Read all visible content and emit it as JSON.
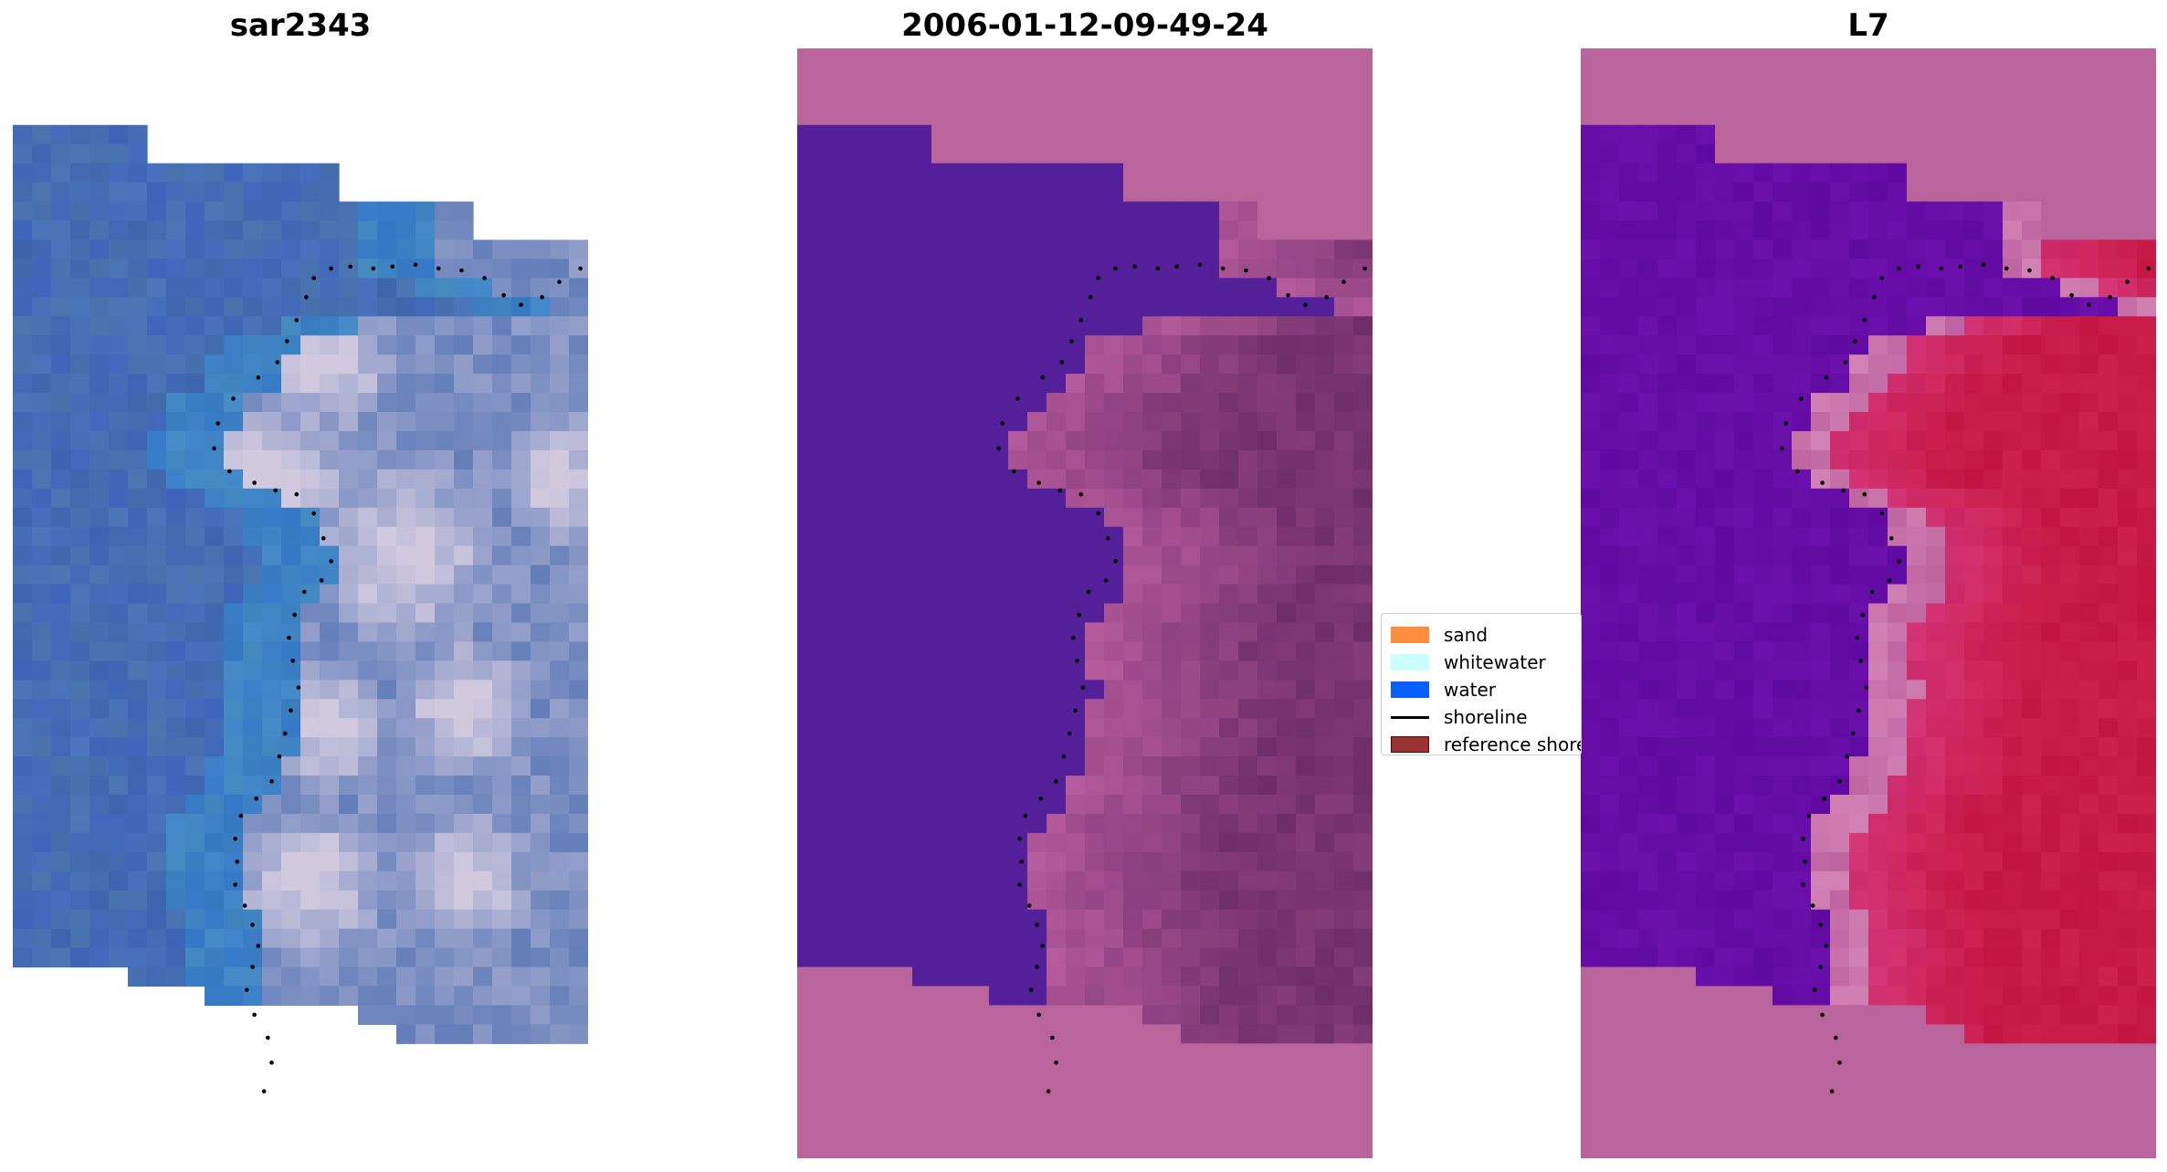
{
  "figure": {
    "panels": [
      {
        "title": "sar2343",
        "kind": "rgb"
      },
      {
        "title": "2006-01-12-09-49-24",
        "kind": "classified"
      },
      {
        "title": "L7",
        "kind": "index"
      }
    ],
    "legend": {
      "placement": "center-right of middle panel",
      "items": [
        {
          "label": "sand",
          "type": "patch",
          "color": "#FF8C3F"
        },
        {
          "label": "whitewater",
          "type": "patch",
          "color": "#C9FFFF"
        },
        {
          "label": "water",
          "type": "patch",
          "color": "#0A5FFF"
        },
        {
          "label": "shoreline",
          "type": "line",
          "color": "#000000"
        },
        {
          "label": "reference shoreline",
          "type": "patch",
          "color": "#9B3232"
        }
      ]
    },
    "colors": {
      "nodata_pink": "#B9649A",
      "water_purple": "#54209A",
      "sar_blue": "#3E65AF",
      "index_red": "#C3144A"
    }
  },
  "chart_data": {
    "type": "heatmap",
    "grid": {
      "cols": 30,
      "rows": 58
    },
    "axes_visible": false,
    "shoreline_style": "black dotted",
    "shoreline_points": [
      [
        29.6,
        11.5
      ],
      [
        28.5,
        12.2
      ],
      [
        27.6,
        13.0
      ],
      [
        26.5,
        13.4
      ],
      [
        25.6,
        12.9
      ],
      [
        24.6,
        12.0
      ],
      [
        23.4,
        11.6
      ],
      [
        22.2,
        11.5
      ],
      [
        21.0,
        11.3
      ],
      [
        19.8,
        11.4
      ],
      [
        18.8,
        11.5
      ],
      [
        17.6,
        11.4
      ],
      [
        16.6,
        11.5
      ],
      [
        15.7,
        12.0
      ],
      [
        15.3,
        13.0
      ],
      [
        14.8,
        14.2
      ],
      [
        14.3,
        15.3
      ],
      [
        13.8,
        16.4
      ],
      [
        12.8,
        17.2
      ],
      [
        11.5,
        18.3
      ],
      [
        10.7,
        19.6
      ],
      [
        10.5,
        20.9
      ],
      [
        11.3,
        22.1
      ],
      [
        12.6,
        22.7
      ],
      [
        13.7,
        23.1
      ],
      [
        14.8,
        23.3
      ],
      [
        15.7,
        24.3
      ],
      [
        16.2,
        25.6
      ],
      [
        16.6,
        26.8
      ],
      [
        16.1,
        27.8
      ],
      [
        15.2,
        28.4
      ],
      [
        14.7,
        29.6
      ],
      [
        14.4,
        30.8
      ],
      [
        14.6,
        32.0
      ],
      [
        14.9,
        33.4
      ],
      [
        14.5,
        34.6
      ],
      [
        14.2,
        35.8
      ],
      [
        13.9,
        37.0
      ],
      [
        13.5,
        38.3
      ],
      [
        12.7,
        39.2
      ],
      [
        11.9,
        40.1
      ],
      [
        11.6,
        41.3
      ],
      [
        11.7,
        42.5
      ],
      [
        11.6,
        43.7
      ],
      [
        12.1,
        44.8
      ],
      [
        12.5,
        45.8
      ],
      [
        12.8,
        46.9
      ],
      [
        12.5,
        48.0
      ],
      [
        12.2,
        49.2
      ],
      [
        12.6,
        50.5
      ],
      [
        13.3,
        51.7
      ],
      [
        13.5,
        53.0
      ],
      [
        13.1,
        54.5
      ]
    ]
  }
}
